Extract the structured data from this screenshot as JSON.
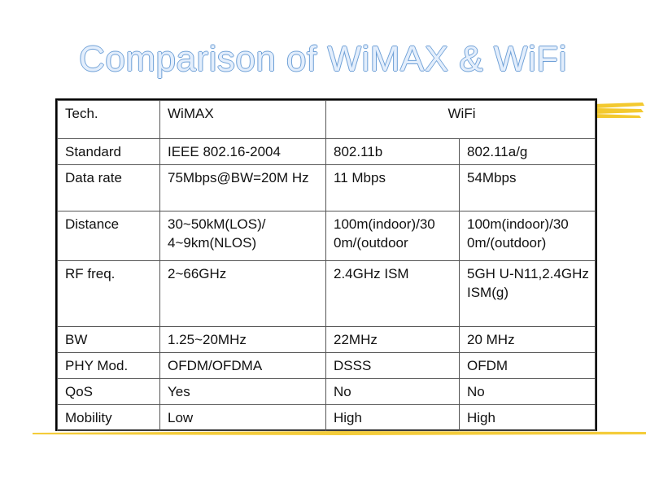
{
  "title": "Comparison of WiMAX & WiFi",
  "colors": {
    "title_fill": "#e3eefc",
    "title_outline": "#6d9fd6",
    "highlighter": "#f2c318"
  },
  "table": {
    "header": {
      "col1": "Tech.",
      "col2": "WiMAX",
      "col3": "WiFi"
    },
    "rows": [
      {
        "label": "Standard",
        "wimax": "IEEE 802.16-2004",
        "wifi_b": "802.11b",
        "wifi_ag": "802.11a/g"
      },
      {
        "label": "Data rate",
        "wimax": "75Mbps@BW=20M Hz",
        "wifi_b": "11 Mbps",
        "wifi_ag": "54Mbps"
      },
      {
        "label": "Distance",
        "wimax": "30~50kM(LOS)/ 4~9km(NLOS)",
        "wifi_b": "100m(indoor)/30 0m/(outdoor",
        "wifi_ag": "100m(indoor)/30 0m/(outdoor)"
      },
      {
        "label": "RF freq.",
        "wimax": "2~66GHz",
        "wifi_b": "2.4GHz ISM",
        "wifi_ag": "5GH U-N11,2.4GHz ISM(g)"
      },
      {
        "label": "BW",
        "wimax": "1.25~20MHz",
        "wifi_b": "22MHz",
        "wifi_ag": "20 MHz"
      },
      {
        "label": "PHY Mod.",
        "wimax": "OFDM/OFDMA",
        "wifi_b": "DSSS",
        "wifi_ag": "OFDM"
      },
      {
        "label": "QoS",
        "wimax": "Yes",
        "wifi_b": "No",
        "wifi_ag": "No"
      },
      {
        "label": "Mobility",
        "wimax": "Low",
        "wifi_b": "High",
        "wifi_ag": "High"
      }
    ]
  }
}
